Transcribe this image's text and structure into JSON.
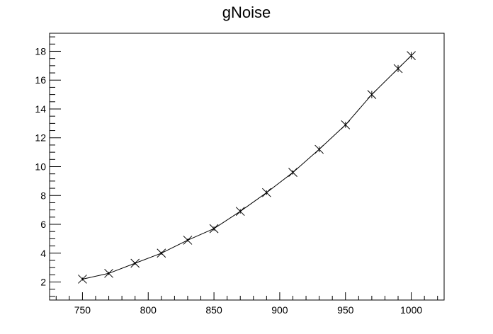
{
  "chart_data": {
    "type": "scatter",
    "title": "gNoise",
    "xlabel": "",
    "ylabel": "",
    "xlim": [
      725,
      1025
    ],
    "ylim": [
      0.75,
      19.25
    ],
    "grid": false,
    "line": true,
    "marker": "x",
    "x_ticks": [
      750,
      800,
      850,
      900,
      950,
      1000
    ],
    "y_ticks": [
      2,
      4,
      6,
      8,
      10,
      12,
      14,
      16,
      18
    ],
    "series": [
      {
        "x": [
          750,
          770,
          790,
          810,
          830,
          850,
          870,
          890,
          910,
          930,
          950,
          970,
          990,
          1000
        ],
        "y": [
          2.2,
          2.6,
          3.3,
          4.0,
          4.9,
          5.7,
          6.9,
          8.2,
          9.6,
          11.2,
          12.9,
          15.0,
          16.8,
          17.7
        ],
        "err": [
          0.1,
          0.1,
          0.1,
          0.1,
          0.1,
          0.15,
          0.15,
          0.15,
          0.15,
          0.2,
          0.2,
          0.25,
          0.25,
          0.25
        ]
      }
    ]
  }
}
